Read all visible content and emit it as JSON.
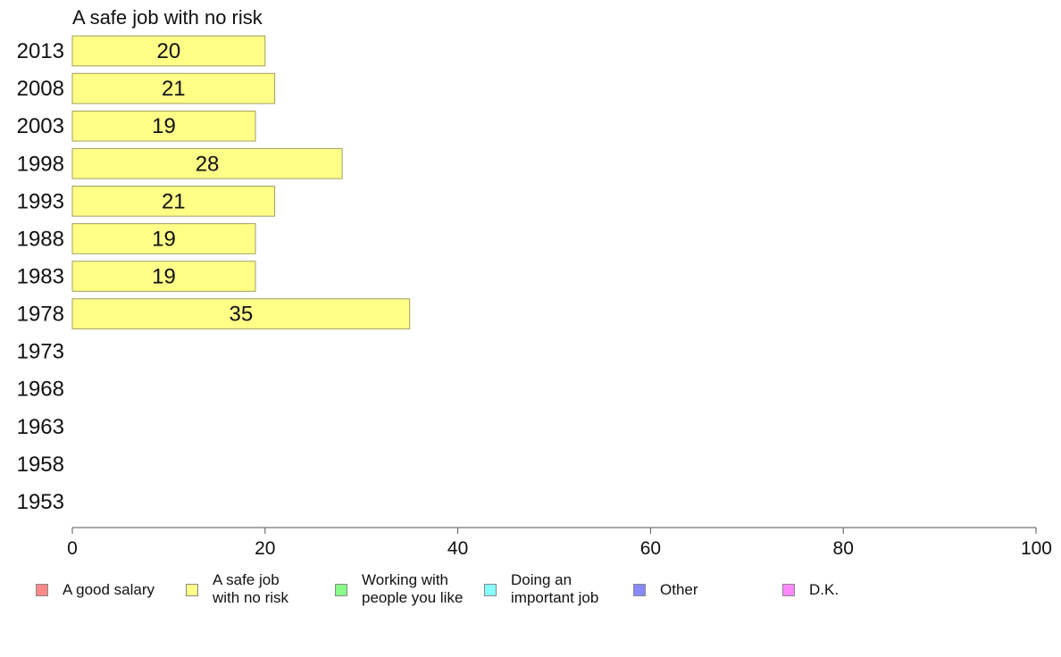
{
  "chart_data": {
    "type": "bar",
    "orientation": "horizontal",
    "title": "A safe job with no risk",
    "categories": [
      "2013",
      "2008",
      "2003",
      "1998",
      "1993",
      "1988",
      "1983",
      "1978",
      "1973",
      "1968",
      "1963",
      "1958",
      "1953"
    ],
    "values": [
      20,
      21,
      19,
      28,
      21,
      19,
      19,
      35,
      null,
      null,
      null,
      null,
      null
    ],
    "value_labels": [
      "20",
      "21",
      "19",
      "28",
      "21",
      "19",
      "19",
      "35",
      "",
      "",
      "",
      "",
      ""
    ],
    "xlim": [
      0,
      100
    ],
    "xticks": [
      "0",
      "20",
      "40",
      "60",
      "80",
      "100"
    ],
    "xlabel": "",
    "ylabel": "",
    "grid": false,
    "bar_color": "#ffff88",
    "bar_edge_color": "#a0a060",
    "legend": {
      "placement": "bottom",
      "items": [
        {
          "label": "A good salary",
          "color": "#ff8888"
        },
        {
          "label": "A safe job\nwith no risk",
          "color": "#ffff88"
        },
        {
          "label": "Working with\npeople you like",
          "color": "#88ff88"
        },
        {
          "label": "Doing an\nimportant job",
          "color": "#88ffff"
        },
        {
          "label": "Other",
          "color": "#8888ff"
        },
        {
          "label": "D.K.",
          "color": "#ff88ff"
        }
      ]
    }
  }
}
